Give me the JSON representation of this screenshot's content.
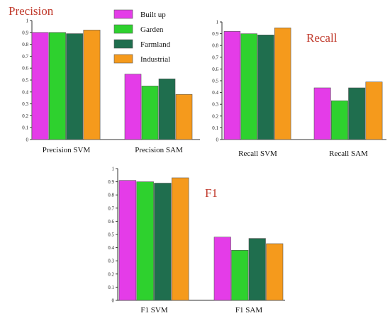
{
  "chart_data": [
    {
      "type": "bar",
      "title": "Precision",
      "categories": [
        "Precision SVM",
        "Precision SAM"
      ],
      "ylim": [
        0,
        1
      ],
      "yticks": [
        "0",
        "0.1",
        "0.2",
        "0.3",
        "0.4",
        "0.5",
        "0.6",
        "0.7",
        "0.8",
        "0.9",
        "1"
      ],
      "legend": "top-right",
      "series": [
        {
          "name": "Built up",
          "color": "#e43ce8",
          "values": [
            0.9,
            0.55
          ]
        },
        {
          "name": "Garden",
          "color": "#2ed12e",
          "values": [
            0.9,
            0.45
          ]
        },
        {
          "name": "Farmland",
          "color": "#1f6e4e",
          "values": [
            0.89,
            0.51
          ]
        },
        {
          "name": "Industrial",
          "color": "#f59a1c",
          "values": [
            0.92,
            0.38
          ]
        }
      ]
    },
    {
      "type": "bar",
      "title": "Recall",
      "categories": [
        "Recall SVM",
        "Recall SAM"
      ],
      "ylim": [
        0,
        1
      ],
      "yticks": [
        "0",
        "0.1",
        "0.2",
        "0.3",
        "0.4",
        "0.5",
        "0.6",
        "0.7",
        "0.8",
        "0.9",
        "1"
      ],
      "series": [
        {
          "name": "Built up",
          "color": "#e43ce8",
          "values": [
            0.92,
            0.44
          ]
        },
        {
          "name": "Garden",
          "color": "#2ed12e",
          "values": [
            0.9,
            0.33
          ]
        },
        {
          "name": "Farmland",
          "color": "#1f6e4e",
          "values": [
            0.89,
            0.44
          ]
        },
        {
          "name": "Industrial",
          "color": "#f59a1c",
          "values": [
            0.95,
            0.49
          ]
        }
      ]
    },
    {
      "type": "bar",
      "title": "F1",
      "categories": [
        "F1 SVM",
        "F1 SAM"
      ],
      "ylim": [
        0,
        1
      ],
      "yticks": [
        "0",
        "0.1",
        "0.2",
        "0.3",
        "0.4",
        "0.5",
        "0.6",
        "0.7",
        "0.8",
        "0.9",
        "1"
      ],
      "series": [
        {
          "name": "Built up",
          "color": "#e43ce8",
          "values": [
            0.91,
            0.48
          ]
        },
        {
          "name": "Garden",
          "color": "#2ed12e",
          "values": [
            0.9,
            0.38
          ]
        },
        {
          "name": "Farmland",
          "color": "#1f6e4e",
          "values": [
            0.89,
            0.47
          ]
        },
        {
          "name": "Industrial",
          "color": "#f59a1c",
          "values": [
            0.93,
            0.43
          ]
        }
      ]
    }
  ]
}
